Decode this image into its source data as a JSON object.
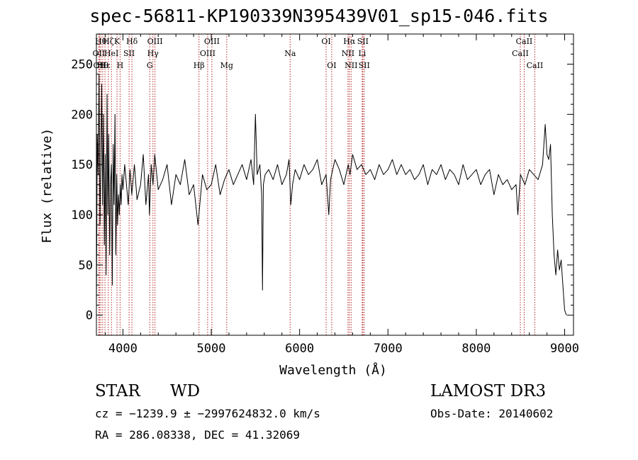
{
  "chart_data": {
    "type": "line",
    "title": "spec-56811-KP190339N395439V01_sp15-046.fits",
    "xlabel": "Wavelength (Å)",
    "ylabel": "Flux (relative)",
    "xlim": [
      3700,
      9100
    ],
    "ylim": [
      -20,
      280
    ],
    "xticks": [
      4000,
      5000,
      6000,
      7000,
      8000,
      9000
    ],
    "yticks": [
      0,
      50,
      100,
      150,
      200,
      250
    ],
    "x": [
      3700,
      3710,
      3720,
      3730,
      3740,
      3750,
      3760,
      3770,
      3780,
      3790,
      3800,
      3810,
      3820,
      3830,
      3840,
      3850,
      3860,
      3870,
      3880,
      3890,
      3900,
      3910,
      3920,
      3930,
      3940,
      3950,
      3960,
      3970,
      3980,
      3990,
      4000,
      4020,
      4040,
      4060,
      4080,
      4100,
      4130,
      4160,
      4200,
      4230,
      4260,
      4290,
      4300,
      4320,
      4340,
      4360,
      4400,
      4450,
      4500,
      4550,
      4600,
      4650,
      4700,
      4750,
      4800,
      4850,
      4900,
      4950,
      5000,
      5050,
      5100,
      5150,
      5200,
      5250,
      5300,
      5350,
      5400,
      5450,
      5480,
      5500,
      5520,
      5550,
      5570,
      5580,
      5590,
      5610,
      5650,
      5700,
      5750,
      5800,
      5850,
      5880,
      5900,
      5920,
      5950,
      6000,
      6050,
      6100,
      6150,
      6200,
      6250,
      6300,
      6330,
      6350,
      6400,
      6450,
      6500,
      6550,
      6570,
      6600,
      6650,
      6700,
      6750,
      6800,
      6850,
      6900,
      6950,
      7000,
      7050,
      7100,
      7150,
      7200,
      7250,
      7300,
      7350,
      7400,
      7450,
      7500,
      7550,
      7600,
      7650,
      7700,
      7750,
      7800,
      7850,
      7900,
      7950,
      8000,
      8050,
      8100,
      8150,
      8200,
      8250,
      8300,
      8350,
      8400,
      8450,
      8470,
      8500,
      8550,
      8600,
      8650,
      8700,
      8750,
      8780,
      8800,
      8820,
      8840,
      8860,
      8880,
      8900,
      8920,
      8940,
      8960,
      8980,
      9000,
      9020
    ],
    "y": [
      5,
      180,
      140,
      240,
      90,
      150,
      230,
      110,
      200,
      70,
      160,
      40,
      220,
      100,
      180,
      60,
      130,
      150,
      30,
      170,
      110,
      200,
      60,
      140,
      90,
      120,
      100,
      130,
      110,
      140,
      125,
      150,
      130,
      110,
      145,
      120,
      150,
      115,
      130,
      160,
      110,
      140,
      100,
      150,
      130,
      160,
      125,
      135,
      150,
      110,
      140,
      130,
      155,
      120,
      130,
      90,
      140,
      125,
      130,
      150,
      120,
      135,
      145,
      130,
      140,
      150,
      135,
      155,
      130,
      200,
      140,
      150,
      120,
      25,
      130,
      140,
      145,
      135,
      150,
      130,
      140,
      155,
      110,
      130,
      145,
      135,
      150,
      140,
      145,
      155,
      130,
      140,
      100,
      135,
      155,
      145,
      130,
      150,
      140,
      160,
      145,
      150,
      140,
      145,
      135,
      150,
      140,
      145,
      155,
      140,
      150,
      140,
      145,
      135,
      140,
      150,
      130,
      145,
      140,
      150,
      135,
      145,
      140,
      130,
      150,
      135,
      140,
      145,
      130,
      140,
      145,
      120,
      140,
      130,
      135,
      125,
      130,
      100,
      140,
      130,
      145,
      140,
      135,
      150,
      190,
      160,
      155,
      170,
      100,
      60,
      40,
      65,
      45,
      55,
      30,
      5,
      0
    ],
    "lines": [
      {
        "label": "OII",
        "wl": 3727,
        "row": 1
      },
      {
        "label": "OII",
        "wl": 3735,
        "row": 2
      },
      {
        "label": "Hθ",
        "wl": 3750,
        "row": 0
      },
      {
        "label": "Hθ",
        "wl": 3771,
        "row": 2
      },
      {
        "label": "Hε",
        "wl": 3797,
        "row": 2
      },
      {
        "label": "Hζ",
        "wl": 3835,
        "row": 0
      },
      {
        "label": "HeI",
        "wl": 3870,
        "row": 1
      },
      {
        "label": "K",
        "wl": 3933,
        "row": 0
      },
      {
        "label": "H",
        "wl": 3968,
        "row": 2
      },
      {
        "label": "SII",
        "wl": 4070,
        "row": 1
      },
      {
        "label": "Hδ",
        "wl": 4102,
        "row": 0
      },
      {
        "label": "G",
        "wl": 4304,
        "row": 2
      },
      {
        "label": "Hγ",
        "wl": 4340,
        "row": 1
      },
      {
        "label": "OIII",
        "wl": 4363,
        "row": 0
      },
      {
        "label": "Hβ",
        "wl": 4861,
        "row": 2
      },
      {
        "label": "OIII",
        "wl": 4959,
        "row": 1
      },
      {
        "label": "OIII",
        "wl": 5007,
        "row": 0
      },
      {
        "label": "Mg",
        "wl": 5175,
        "row": 2
      },
      {
        "label": "Na",
        "wl": 5893,
        "row": 1
      },
      {
        "label": "OI",
        "wl": 6300,
        "row": 0
      },
      {
        "label": "OI",
        "wl": 6363,
        "row": 2
      },
      {
        "label": "NII",
        "wl": 6548,
        "row": 1
      },
      {
        "label": "Hα",
        "wl": 6563,
        "row": 0
      },
      {
        "label": "NII",
        "wl": 6583,
        "row": 2
      },
      {
        "label": "Li",
        "wl": 6708,
        "row": 1
      },
      {
        "label": "SII",
        "wl": 6716,
        "row": 0
      },
      {
        "label": "SII",
        "wl": 6731,
        "row": 2
      },
      {
        "label": "CaII",
        "wl": 8498,
        "row": 1
      },
      {
        "label": "CaII",
        "wl": 8542,
        "row": 0
      },
      {
        "label": "CaII",
        "wl": 8662,
        "row": 2
      }
    ],
    "colors": {
      "spectrum": "#000000",
      "lines": "#b22222"
    }
  },
  "info": {
    "class": "STAR",
    "subclass": "WD",
    "survey": "LAMOST DR3",
    "cz": "cz = −1239.9 ± −2997624832.0 km/s",
    "obsdate": "Obs-Date: 20140602",
    "radec": "RA = 286.08338, DEC =  41.32069"
  }
}
